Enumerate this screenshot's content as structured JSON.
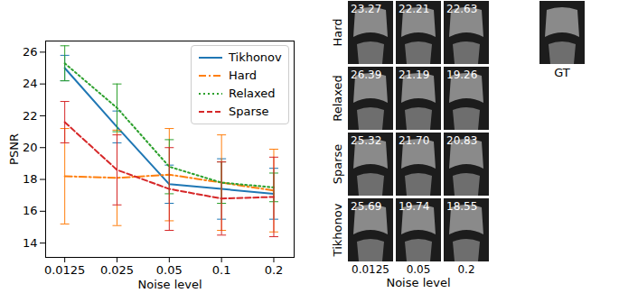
{
  "chart_data": {
    "type": "line",
    "x": [
      0.0125,
      0.025,
      0.05,
      0.1,
      0.2
    ],
    "xlim": [
      0.0097,
      0.262
    ],
    "xticks": [
      0.0125,
      0.025,
      0.05,
      0.1,
      0.2
    ],
    "log": "x",
    "ylim": [
      13.1,
      26.7
    ],
    "yticks": [
      14,
      16,
      18,
      20,
      22,
      24,
      26
    ],
    "x_label": "Noise level",
    "y_label": "PSNR",
    "legend": "upper right",
    "grid": false,
    "series": [
      {
        "name": "Tikhonov",
        "color": "#1f77b4",
        "line_style": "solid",
        "values": [
          25.0,
          21.3,
          17.7,
          17.4,
          17.1
        ],
        "errors": [
          0.8,
          1.0,
          1.2,
          1.9,
          1.6
        ]
      },
      {
        "name": "Hard",
        "color": "#ff7f0e",
        "line_style": "dashdot",
        "values": [
          18.2,
          18.1,
          18.3,
          17.8,
          17.3
        ],
        "errors": [
          3.0,
          3.0,
          2.9,
          3.0,
          2.6
        ]
      },
      {
        "name": "Relaxed",
        "color": "#2ca02c",
        "line_style": "dotted",
        "values": [
          25.3,
          22.5,
          18.8,
          17.8,
          17.5
        ],
        "errors": [
          1.1,
          1.5,
          1.7,
          1.3,
          0.9
        ]
      },
      {
        "name": "Sparse",
        "color": "#d62728",
        "line_style": "dashed",
        "values": [
          21.6,
          18.6,
          17.4,
          16.8,
          16.9
        ],
        "errors": [
          1.3,
          2.2,
          2.6,
          2.3,
          2.5
        ]
      }
    ]
  },
  "image_grid": {
    "row_labels": [
      "Hard",
      "Relaxed",
      "Sparse",
      "Tikhonov"
    ],
    "column_labels": [
      "0.0125",
      "0.05",
      "0.2"
    ],
    "x_label": "Noise level",
    "reference_label": "GT",
    "psnr": [
      [
        "23.27",
        "22.21",
        "22.63"
      ],
      [
        "26.39",
        "21.19",
        "19.26"
      ],
      [
        "25.32",
        "21.70",
        "20.83"
      ],
      [
        "25.69",
        "19.74",
        "18.55"
      ]
    ]
  }
}
